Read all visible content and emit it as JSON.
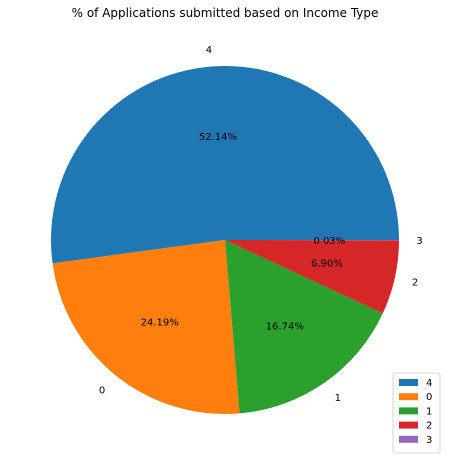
{
  "chart_data": {
    "type": "pie",
    "title": "% of Applications submitted based on Income Type",
    "categories": [
      "4",
      "0",
      "1",
      "2",
      "3"
    ],
    "values": [
      52.14,
      24.19,
      16.74,
      6.9,
      0.03
    ],
    "percent_labels": [
      "52.14%",
      "24.19%",
      "16.74%",
      "6.90%",
      "0.03%"
    ],
    "colors": [
      "#1f77b4",
      "#ff7f0e",
      "#2ca02c",
      "#d62728",
      "#9467bd"
    ],
    "start_angle": "0 degrees (3 o'clock)",
    "direction": "counterclockwise",
    "legend": {
      "placement": "lower-right",
      "entries": [
        "4",
        "0",
        "1",
        "2",
        "3"
      ]
    }
  }
}
